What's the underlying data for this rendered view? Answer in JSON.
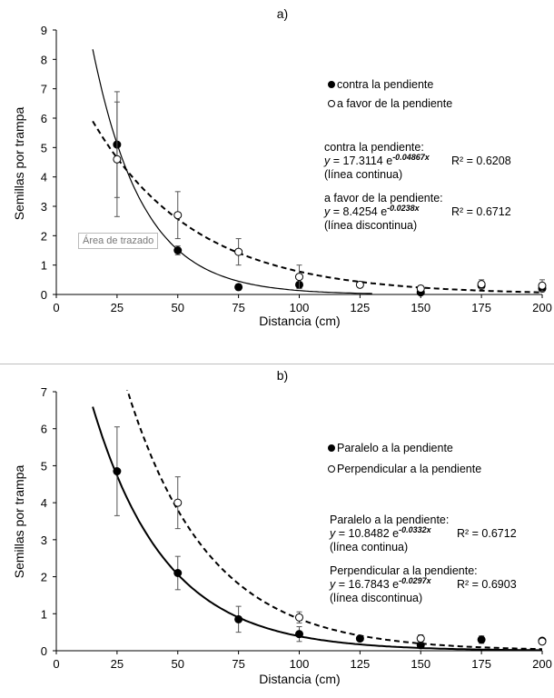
{
  "chart_data": [
    {
      "type": "scatter",
      "title": "a)",
      "xlabel": "Distancia (cm)",
      "ylabel": "Semillas por trampa",
      "xlim": [
        0,
        200
      ],
      "ylim": [
        0,
        9
      ],
      "xticks": [
        0,
        25,
        50,
        75,
        100,
        125,
        150,
        175,
        200
      ],
      "yticks": [
        0,
        1,
        2,
        3,
        4,
        5,
        6,
        7,
        8,
        9
      ],
      "legend_position": "right",
      "series": [
        {
          "name": "contra la pendiente",
          "marker": "filled",
          "x": [
            25,
            50,
            75,
            100,
            150,
            175,
            200
          ],
          "y": [
            5.1,
            1.5,
            0.25,
            0.33,
            0.07,
            0.3,
            0.2
          ],
          "err": [
            1.8,
            0.15,
            0.1,
            0.1,
            0.05,
            0.1,
            0.1
          ]
        },
        {
          "name": "a favor de la pendiente",
          "marker": "open",
          "x": [
            25,
            50,
            75,
            100,
            125,
            150,
            175,
            200
          ],
          "y": [
            4.6,
            2.7,
            1.45,
            0.6,
            0.33,
            0.2,
            0.35,
            0.3
          ],
          "err": [
            1.95,
            0.8,
            0.45,
            0.4,
            0.05,
            0.1,
            0.15,
            0.2
          ]
        }
      ],
      "fits": [
        {
          "label": "contra la pendiente:",
          "a": 17.3114,
          "b": -0.04867,
          "exp": "-0.04867x",
          "coef": "17.3114",
          "r2": "R² = 0.6208",
          "style": "(línea continua)",
          "dash": false,
          "xrange": [
            15,
            130
          ]
        },
        {
          "label": "a favor de la pendiente:",
          "a": 8.4254,
          "b": -0.0238,
          "exp": "-0.0238x",
          "coef": "8.4254",
          "r2": "R² = 0.6712",
          "style": "(línea discontinua)",
          "dash": true,
          "xrange": [
            15,
            200
          ]
        }
      ],
      "tooltip": "Área de trazado"
    },
    {
      "type": "scatter",
      "title": "b)",
      "xlabel": "Distancia (cm)",
      "ylabel": "Semillas por trampa",
      "xlim": [
        0,
        200
      ],
      "ylim": [
        0,
        7
      ],
      "xticks": [
        0,
        25,
        50,
        75,
        100,
        125,
        150,
        175,
        200
      ],
      "yticks": [
        0,
        1,
        2,
        3,
        4,
        5,
        6,
        7
      ],
      "legend_position": "right",
      "series": [
        {
          "name": "Paralelo a la pendiente",
          "marker": "filled",
          "x": [
            25,
            50,
            75,
            100,
            125,
            150,
            175,
            200
          ],
          "y": [
            4.85,
            2.1,
            0.85,
            0.45,
            0.33,
            0.15,
            0.3,
            0.27
          ],
          "err": [
            1.2,
            0.45,
            0.35,
            0.2,
            0.05,
            0.05,
            0.1,
            0.05
          ]
        },
        {
          "name": "Perpendicular a la pendiente",
          "marker": "open",
          "x": [
            50,
            100,
            150,
            200
          ],
          "y": [
            4.0,
            0.9,
            0.33,
            0.25
          ],
          "err": [
            0.7,
            0.15,
            0.1,
            0.05
          ]
        }
      ],
      "fits": [
        {
          "label": "Paralelo a la pendiente:",
          "a": 10.8482,
          "b": -0.0332,
          "exp": "-0.0332x",
          "coef": "10.8482",
          "r2": "R² = 0.6712",
          "style": "(línea continua)",
          "dash": false,
          "xrange": [
            15,
            200
          ]
        },
        {
          "label": "Perpendicular a la pendiente:",
          "a": 16.7843,
          "b": -0.0297,
          "exp": "-0.0297x",
          "coef": "16.7843",
          "r2": "R² = 0.6903",
          "style": "(línea discontinua)",
          "dash": true,
          "xrange": [
            15,
            200
          ]
        }
      ]
    }
  ]
}
